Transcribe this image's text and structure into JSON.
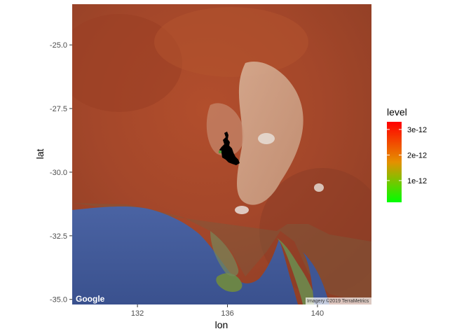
{
  "chart_data": {
    "type": "map",
    "xlabel": "lon",
    "ylabel": "lat",
    "xlim": [
      129.1,
      142.4
    ],
    "ylim": [
      -35.2,
      -23.4
    ],
    "x_ticks": [
      132,
      136,
      140
    ],
    "x_tick_labels": [
      "132",
      "136",
      "140"
    ],
    "y_ticks": [
      -25.0,
      -27.5,
      -30.0,
      -32.5,
      -35.0
    ],
    "y_tick_labels": [
      "-25.0",
      "-27.5",
      "-30.0",
      "-32.5",
      "-35.0"
    ],
    "legend": {
      "title": "level",
      "placement": "right",
      "range": [
        1.5e-13,
        3.3e-12
      ],
      "breaks": [
        1e-12,
        2e-12,
        3e-12
      ],
      "break_labels": [
        "1e-12",
        "2e-12",
        "3e-12"
      ],
      "colors": [
        "#00ff00",
        "#ff0000"
      ]
    },
    "basemap": {
      "logo": "Google",
      "attribution": "Imagery ©2019 TerraMetrics"
    },
    "highlight_region": {
      "description_color": "#000000",
      "centroid": [
        135.5,
        -29.4
      ]
    }
  }
}
